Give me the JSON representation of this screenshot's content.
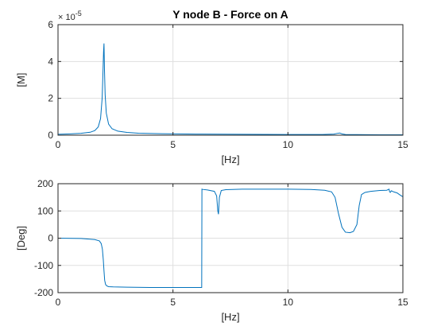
{
  "chart_data": [
    {
      "type": "line",
      "title": "Y node B - Force on A",
      "xlabel": "[Hz]",
      "ylabel": "[M]",
      "xlim": [
        0,
        15
      ],
      "ylim": [
        0,
        6
      ],
      "xticks": [
        "0",
        "5",
        "10",
        "15"
      ],
      "yticks": [
        "0",
        "2",
        "4",
        "6"
      ],
      "y_multiplier": "× 10",
      "y_exponent": "-5",
      "grid": true,
      "line_color": "#0072BD",
      "series": [
        {
          "x": [
            0,
            0.5,
            1.0,
            1.4,
            1.6,
            1.75,
            1.85,
            1.92,
            1.96,
            1.98,
            2.0,
            2.02,
            2.05,
            2.1,
            2.2,
            2.35,
            2.6,
            3.0,
            3.5,
            4.5,
            6,
            8,
            10,
            11.5,
            12.0,
            12.15,
            12.25,
            12.35,
            12.5,
            13,
            14,
            15
          ],
          "y": [
            0.05,
            0.07,
            0.1,
            0.16,
            0.25,
            0.45,
            0.9,
            2.0,
            3.6,
            4.5,
            4.98,
            3.6,
            2.2,
            1.2,
            0.6,
            0.35,
            0.22,
            0.15,
            0.11,
            0.08,
            0.06,
            0.05,
            0.04,
            0.04,
            0.06,
            0.1,
            0.12,
            0.07,
            0.04,
            0.03,
            0.02,
            0.02
          ]
        }
      ]
    },
    {
      "type": "line",
      "title": "",
      "xlabel": "[Hz]",
      "ylabel": "[Deg]",
      "xlim": [
        0,
        15
      ],
      "ylim": [
        -200,
        200
      ],
      "xticks": [
        "0",
        "5",
        "10",
        "15"
      ],
      "yticks": [
        "-200",
        "-100",
        "0",
        "100",
        "200"
      ],
      "grid": true,
      "line_color": "#0072BD",
      "series": [
        {
          "x": [
            0,
            1.0,
            1.6,
            1.8,
            1.88,
            1.93,
            1.97,
            2.0,
            2.03,
            2.07,
            2.12,
            2.2,
            2.4,
            3.0,
            4.0,
            5.0,
            6.0,
            6.25,
            6.26,
            6.3,
            6.5,
            6.8,
            6.9,
            6.95,
            6.98,
            7.02,
            7.1,
            7.3,
            8.0,
            10.0,
            11.0,
            11.6,
            11.9,
            12.05,
            12.2,
            12.35,
            12.5,
            12.7,
            12.85,
            13.0,
            13.1,
            13.2,
            13.35,
            13.6,
            14.0,
            14.3,
            14.4,
            14.42,
            14.45,
            14.5,
            14.6,
            14.75,
            14.85,
            15.0
          ],
          "y": [
            0,
            -1,
            -5,
            -10,
            -20,
            -40,
            -80,
            -120,
            -155,
            -170,
            -175,
            -178,
            -179,
            -180,
            -181,
            -181,
            -181,
            -181,
            180,
            179,
            177,
            172,
            155,
            100,
            88,
            150,
            175,
            178,
            180,
            180,
            179,
            176,
            170,
            150,
            90,
            40,
            22,
            20,
            25,
            50,
            120,
            160,
            168,
            172,
            175,
            176,
            180,
            171,
            168,
            174,
            170,
            166,
            160,
            152
          ]
        }
      ]
    }
  ]
}
